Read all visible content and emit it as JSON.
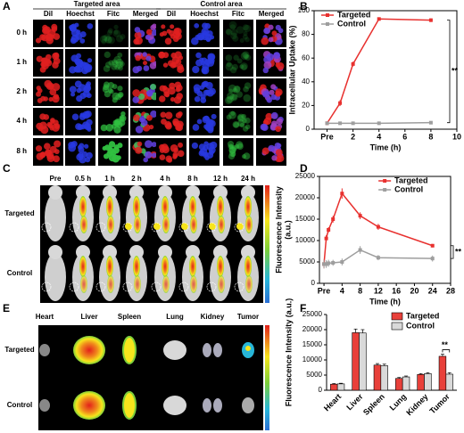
{
  "panel_labels": [
    "A",
    "B",
    "C",
    "D",
    "E",
    "F"
  ],
  "panel_a": {
    "groups": [
      "Targeted area",
      "Control area"
    ],
    "channels": [
      "Dil",
      "Hoechst",
      "Fitc",
      "Merged"
    ],
    "times": [
      "0 h",
      "1 h",
      "2 h",
      "4 h",
      "8 h"
    ]
  },
  "panel_c": {
    "times": [
      "Pre",
      "0.5 h",
      "1 h",
      "2 h",
      "4 h",
      "8 h",
      "12 h",
      "24 h"
    ],
    "rows": [
      "Targeted",
      "Control"
    ]
  },
  "panel_e": {
    "organs": [
      "Heart",
      "Liver",
      "Spleen",
      "Lung",
      "Kidney",
      "Tumor"
    ],
    "rows": [
      "Targeted",
      "Control"
    ]
  },
  "chart_data": [
    {
      "type": "line",
      "x_label": "Time (h)",
      "y_label": [
        "Intracellular Uptake (%)"
      ],
      "x": [
        0,
        1,
        2,
        4,
        8
      ],
      "series": [
        {
          "name": "Targeted",
          "color": "#e8312f",
          "values": [
            5,
            22,
            55,
            93,
            92
          ],
          "errors": [
            1.5,
            2.5,
            2,
            1,
            1.5
          ]
        },
        {
          "name": "Control",
          "color": "#9e9e9e",
          "values": [
            5,
            5,
            5,
            5,
            5.5
          ],
          "errors": [
            1,
            1,
            1,
            1,
            1
          ]
        }
      ],
      "xlim": [
        -1,
        10
      ],
      "xticks": [
        {
          "value": 0,
          "label": "Pre"
        },
        2,
        4,
        6,
        8,
        10
      ],
      "ylim": [
        0,
        100
      ],
      "yticks": [
        0,
        20,
        40,
        60,
        80,
        100
      ],
      "legend": "upper left",
      "significance": "**"
    },
    {
      "type": "line",
      "x_label": "Time (h)",
      "y_label": [
        "Fluorescence Intensity",
        "(a.u.)"
      ],
      "x": [
        0,
        0.5,
        1,
        2,
        4,
        8,
        12,
        24
      ],
      "series": [
        {
          "name": "Targeted",
          "color": "#e8312f",
          "values": [
            4500,
            10500,
            12500,
            15000,
            21000,
            15800,
            13200,
            8800
          ],
          "errors": [
            1000,
            800,
            600,
            800,
            1200,
            800,
            700,
            400
          ]
        },
        {
          "name": "Control",
          "color": "#9e9e9e",
          "values": [
            4500,
            4500,
            4700,
            4800,
            5000,
            7800,
            6000,
            5800
          ],
          "errors": [
            1000,
            900,
            800,
            700,
            800,
            900,
            600,
            700
          ]
        }
      ],
      "xlim": [
        -1,
        28
      ],
      "xticks": [
        {
          "value": 0,
          "label": "Pre"
        },
        4,
        8,
        12,
        16,
        20,
        24,
        28
      ],
      "ylim": [
        0,
        25000
      ],
      "yticks": [
        0,
        5000,
        10000,
        15000,
        20000,
        25000
      ],
      "legend": "upper right",
      "significance": "**"
    },
    {
      "type": "bar",
      "y_label": [
        "Fluorescence Intensity (a.u.)"
      ],
      "categories": [
        "Heart",
        "Liver",
        "Spleen",
        "Lung",
        "Kidney",
        "Tumor"
      ],
      "series": [
        {
          "name": "Targeted",
          "color": "#e8403a",
          "values": [
            2000,
            19000,
            8300,
            3900,
            5200,
            11200
          ],
          "errors": [
            200,
            1200,
            500,
            300,
            300,
            700
          ]
        },
        {
          "name": "Control",
          "color": "#d9d9d9",
          "values": [
            2100,
            18900,
            8100,
            4400,
            5500,
            5300
          ],
          "errors": [
            200,
            1100,
            500,
            300,
            300,
            500
          ]
        }
      ],
      "ylim": [
        0,
        25000
      ],
      "yticks": [
        0,
        5000,
        10000,
        15000,
        20000,
        25000
      ],
      "legend": "upper right",
      "significance": "**"
    }
  ]
}
